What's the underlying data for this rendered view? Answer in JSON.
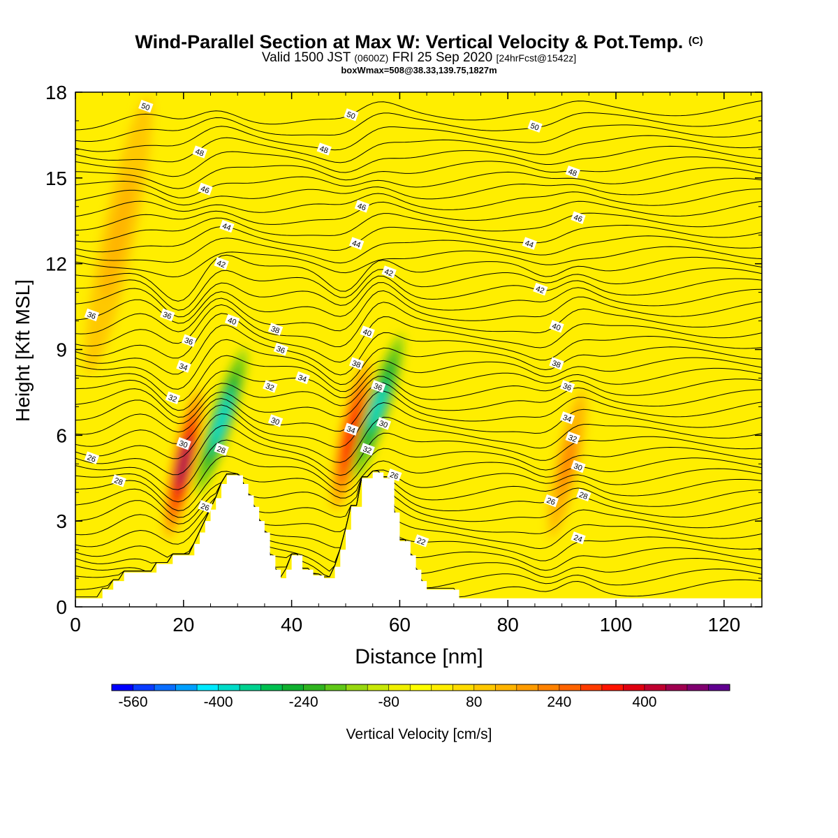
{
  "header": {
    "title": "Wind-Parallel Section at Max W: Vertical Velocity & Pot.Temp.",
    "copyright": "(C)",
    "valid_prefix": "Valid 1500 JST",
    "valid_utc": "(0600Z)",
    "valid_date": "FRI 25 Sep 2020",
    "forecast": "[24hrFcst@1542z]",
    "boxinfo": "boxWmax=508@38.33,139.75,1827m"
  },
  "chart_data": {
    "type": "heatmap",
    "title": "Wind-Parallel Section at Max W: Vertical Velocity & Pot.Temp.",
    "xlabel": "Distance [nm]",
    "ylabel": "Height [Kft MSL]",
    "xlim": [
      0,
      127
    ],
    "ylim": [
      0,
      18
    ],
    "x_ticks": [
      "0",
      "20",
      "40",
      "60",
      "80",
      "100",
      "120"
    ],
    "y_ticks": [
      "0",
      "3",
      "6",
      "9",
      "12",
      "15",
      "18"
    ],
    "colorbar": {
      "title": "Vertical Velocity [cm/s]",
      "labels": [
        "-560",
        "-400",
        "-240",
        "-80",
        "80",
        "240",
        "400"
      ],
      "range": [
        -600,
        520
      ],
      "step": 40,
      "colors": [
        "#0000ff",
        "#0a3cff",
        "#0a6eff",
        "#00a0ff",
        "#00eaff",
        "#00dcc8",
        "#00d290",
        "#00c050",
        "#10b030",
        "#30b420",
        "#60c818",
        "#98d810",
        "#c8e808",
        "#f0f000",
        "#ffff00",
        "#ffee00",
        "#ffdc00",
        "#ffc800",
        "#ffb400",
        "#ff9c00",
        "#ff8200",
        "#ff6400",
        "#ff3c00",
        "#ff1400",
        "#e00010",
        "#c00030",
        "#a00050",
        "#800070",
        "#600090"
      ]
    },
    "w_features": [
      {
        "kind": "updraft",
        "x": 20,
        "height": 5.0,
        "max_w": 500
      },
      {
        "kind": "downdraft",
        "x": 27,
        "height": 6.5,
        "max_w": -420
      },
      {
        "kind": "updraft",
        "x": 51,
        "height": 6.0,
        "max_w": 380
      },
      {
        "kind": "downdraft",
        "x": 56,
        "height": 7.0,
        "max_w": -400
      },
      {
        "kind": "updraft",
        "x": 91,
        "height": 5.0,
        "max_w": 220
      },
      {
        "kind": "updraft",
        "x": 8,
        "height": 13.0,
        "max_w": 150
      }
    ],
    "terrain": [
      [
        0,
        0.3
      ],
      [
        5,
        0.3
      ],
      [
        5,
        0.6
      ],
      [
        7,
        0.6
      ],
      [
        7,
        0.9
      ],
      [
        9,
        0.9
      ],
      [
        9,
        1.2
      ],
      [
        15,
        1.2
      ],
      [
        15,
        1.5
      ],
      [
        18,
        1.5
      ],
      [
        18,
        1.8
      ],
      [
        22,
        1.8
      ],
      [
        22,
        2.2
      ],
      [
        23,
        2.2
      ],
      [
        23,
        2.6
      ],
      [
        24,
        2.6
      ],
      [
        24,
        3.0
      ],
      [
        25,
        3.0
      ],
      [
        25,
        3.4
      ],
      [
        26,
        3.4
      ],
      [
        26,
        3.8
      ],
      [
        27,
        3.8
      ],
      [
        27,
        4.3
      ],
      [
        28,
        4.3
      ],
      [
        28,
        4.6
      ],
      [
        31,
        4.6
      ],
      [
        31,
        4.3
      ],
      [
        32,
        4.3
      ],
      [
        32,
        3.9
      ],
      [
        33,
        3.9
      ],
      [
        33,
        3.5
      ],
      [
        34,
        3.5
      ],
      [
        34,
        3.0
      ],
      [
        35,
        3.0
      ],
      [
        35,
        2.6
      ],
      [
        36,
        2.6
      ],
      [
        36,
        1.8
      ],
      [
        37,
        1.8
      ],
      [
        37,
        1.3
      ],
      [
        38,
        1.3
      ],
      [
        38,
        1.0
      ],
      [
        39,
        1.0
      ],
      [
        39,
        1.3
      ],
      [
        40,
        1.3
      ],
      [
        40,
        1.8
      ],
      [
        42,
        1.8
      ],
      [
        42,
        1.3
      ],
      [
        44,
        1.3
      ],
      [
        44,
        1.1
      ],
      [
        46,
        1.1
      ],
      [
        46,
        1.0
      ],
      [
        48,
        1.0
      ],
      [
        48,
        1.4
      ],
      [
        49,
        1.4
      ],
      [
        49,
        2.0
      ],
      [
        50,
        2.0
      ],
      [
        50,
        2.7
      ],
      [
        51,
        2.7
      ],
      [
        51,
        3.5
      ],
      [
        53,
        3.5
      ],
      [
        53,
        4.5
      ],
      [
        55,
        4.5
      ],
      [
        55,
        4.7
      ],
      [
        57,
        4.7
      ],
      [
        57,
        4.5
      ],
      [
        59,
        4.5
      ],
      [
        59,
        3.3
      ],
      [
        60,
        3.3
      ],
      [
        60,
        2.3
      ],
      [
        62,
        2.3
      ],
      [
        62,
        1.8
      ],
      [
        63,
        1.8
      ],
      [
        63,
        1.3
      ],
      [
        64,
        1.3
      ],
      [
        64,
        0.9
      ],
      [
        65,
        0.9
      ],
      [
        65,
        0.6
      ],
      [
        71,
        0.6
      ],
      [
        71,
        0.3
      ],
      [
        127,
        0.3
      ]
    ],
    "theta_labels": [
      {
        "text": "50",
        "x": 13,
        "y": 17.5
      },
      {
        "text": "50",
        "x": 51,
        "y": 17.2
      },
      {
        "text": "50",
        "x": 85,
        "y": 16.8
      },
      {
        "text": "48",
        "x": 23,
        "y": 15.9
      },
      {
        "text": "48",
        "x": 46,
        "y": 16.0
      },
      {
        "text": "48",
        "x": 92,
        "y": 15.2
      },
      {
        "text": "46",
        "x": 24,
        "y": 14.6
      },
      {
        "text": "46",
        "x": 53,
        "y": 14.0
      },
      {
        "text": "46",
        "x": 93,
        "y": 13.6
      },
      {
        "text": "44",
        "x": 28,
        "y": 13.3
      },
      {
        "text": "44",
        "x": 52,
        "y": 12.7
      },
      {
        "text": "44",
        "x": 84,
        "y": 12.7
      },
      {
        "text": "42",
        "x": 27,
        "y": 12.0
      },
      {
        "text": "42",
        "x": 58,
        "y": 11.7
      },
      {
        "text": "42",
        "x": 86,
        "y": 11.1
      },
      {
        "text": "36",
        "x": 3,
        "y": 10.2
      },
      {
        "text": "36",
        "x": 17,
        "y": 10.2
      },
      {
        "text": "40",
        "x": 29,
        "y": 10.0
      },
      {
        "text": "38",
        "x": 37,
        "y": 9.7
      },
      {
        "text": "40",
        "x": 54,
        "y": 9.6
      },
      {
        "text": "40",
        "x": 89,
        "y": 9.8
      },
      {
        "text": "36",
        "x": 21,
        "y": 9.3
      },
      {
        "text": "36",
        "x": 38,
        "y": 9.0
      },
      {
        "text": "38",
        "x": 52,
        "y": 8.5
      },
      {
        "text": "38",
        "x": 89,
        "y": 8.5
      },
      {
        "text": "34",
        "x": 20,
        "y": 8.4
      },
      {
        "text": "34",
        "x": 42,
        "y": 8.0
      },
      {
        "text": "32",
        "x": 36,
        "y": 7.7
      },
      {
        "text": "36",
        "x": 56,
        "y": 7.7
      },
      {
        "text": "36",
        "x": 91,
        "y": 7.7
      },
      {
        "text": "32",
        "x": 18,
        "y": 7.3
      },
      {
        "text": "30",
        "x": 37,
        "y": 6.5
      },
      {
        "text": "34",
        "x": 51,
        "y": 6.2
      },
      {
        "text": "30",
        "x": 57,
        "y": 6.4
      },
      {
        "text": "34",
        "x": 91,
        "y": 6.6
      },
      {
        "text": "30",
        "x": 20,
        "y": 5.7
      },
      {
        "text": "28",
        "x": 27,
        "y": 5.5
      },
      {
        "text": "32",
        "x": 54,
        "y": 5.5
      },
      {
        "text": "32",
        "x": 92,
        "y": 5.9
      },
      {
        "text": "26",
        "x": 3,
        "y": 5.2
      },
      {
        "text": "26",
        "x": 59,
        "y": 4.6
      },
      {
        "text": "30",
        "x": 93,
        "y": 4.9
      },
      {
        "text": "28",
        "x": 8,
        "y": 4.4
      },
      {
        "text": "26",
        "x": 88,
        "y": 3.7
      },
      {
        "text": "28",
        "x": 94,
        "y": 3.9
      },
      {
        "text": "26",
        "x": 24,
        "y": 3.5
      },
      {
        "text": "24",
        "x": 93,
        "y": 2.4
      },
      {
        "text": "22",
        "x": 64,
        "y": 2.3
      }
    ]
  }
}
